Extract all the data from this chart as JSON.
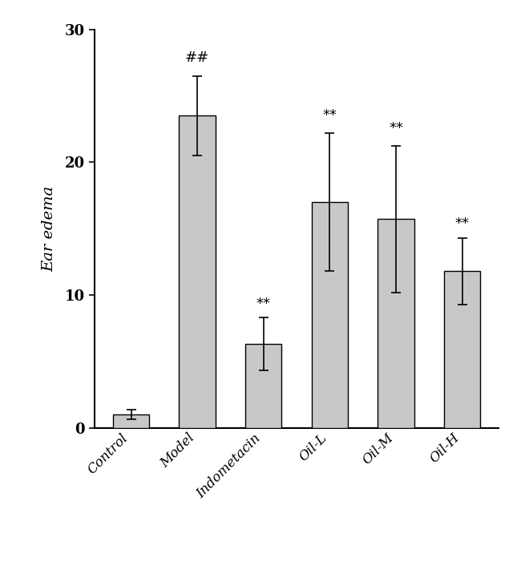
{
  "categories": [
    "Control",
    "Model",
    "Indometacin",
    "Oil-L",
    "Oil-M",
    "Oil-H"
  ],
  "values": [
    1.0,
    23.5,
    6.3,
    17.0,
    15.7,
    11.8
  ],
  "errors": [
    0.35,
    3.0,
    2.0,
    5.2,
    5.5,
    2.5
  ],
  "bar_color": "#c8c8c8",
  "bar_edgecolor": "#000000",
  "ylabel": "Ear edema",
  "ylim": [
    0,
    30
  ],
  "yticks": [
    0,
    10,
    20,
    30
  ],
  "annotations": [
    "",
    "##",
    "**",
    "**",
    "**",
    "**"
  ],
  "annotation_fontsize": 13,
  "bar_width": 0.55,
  "figsize": [
    6.55,
    7.31
  ],
  "dpi": 100,
  "annotation_offset": [
    0.3,
    0.8,
    0.5,
    0.8,
    0.8,
    0.5
  ]
}
